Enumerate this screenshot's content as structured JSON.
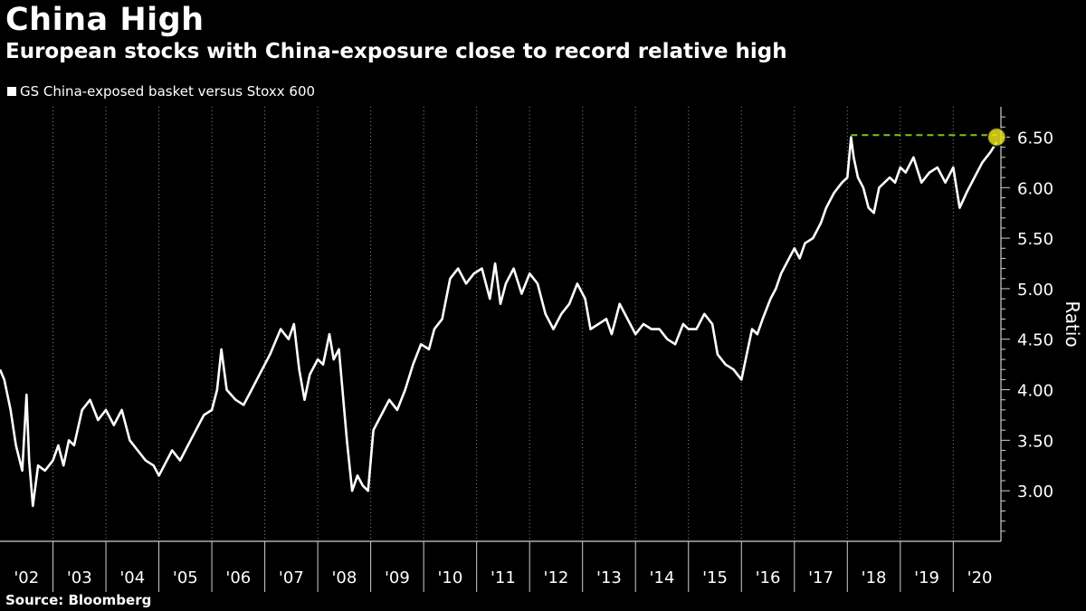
{
  "chart_data": {
    "type": "line",
    "title": "China High",
    "subtitle": "European stocks with China-exposure close to record relative high",
    "ylabel": "Ratio",
    "xlabel": "",
    "ylim": [
      2.5,
      6.8
    ],
    "xlim": [
      2002.0,
      2020.9
    ],
    "yticks": [
      3.0,
      3.5,
      4.0,
      4.5,
      5.0,
      5.5,
      6.0,
      6.5
    ],
    "ytick_labels": [
      "3.00",
      "3.50",
      "4.00",
      "4.50",
      "5.00",
      "5.50",
      "6.00",
      "6.50"
    ],
    "xtick_labels": [
      "'02",
      "'03",
      "'04",
      "'05",
      "'06",
      "'07",
      "'08",
      "'09",
      "'10",
      "'11",
      "'12",
      "'13",
      "'14",
      "'15",
      "'16",
      "'17",
      "'18",
      "'19",
      "'20"
    ],
    "grid": "vertical dotted",
    "legend_position": "top-left",
    "series": [
      {
        "name": "GS China-exposed basket versus Stoxx 600",
        "color": "#ffffff",
        "points": [
          [
            2002.0,
            4.2
          ],
          [
            2002.08,
            4.1
          ],
          [
            2002.2,
            3.8
          ],
          [
            2002.3,
            3.45
          ],
          [
            2002.42,
            3.2
          ],
          [
            2002.5,
            3.95
          ],
          [
            2002.55,
            3.3
          ],
          [
            2002.62,
            2.85
          ],
          [
            2002.72,
            3.25
          ],
          [
            2002.85,
            3.2
          ],
          [
            2003.0,
            3.3
          ],
          [
            2003.1,
            3.45
          ],
          [
            2003.2,
            3.25
          ],
          [
            2003.3,
            3.5
          ],
          [
            2003.4,
            3.45
          ],
          [
            2003.55,
            3.8
          ],
          [
            2003.7,
            3.9
          ],
          [
            2003.85,
            3.7
          ],
          [
            2004.0,
            3.8
          ],
          [
            2004.15,
            3.65
          ],
          [
            2004.3,
            3.8
          ],
          [
            2004.45,
            3.5
          ],
          [
            2004.6,
            3.4
          ],
          [
            2004.75,
            3.3
          ],
          [
            2004.9,
            3.25
          ],
          [
            2005.0,
            3.15
          ],
          [
            2005.1,
            3.25
          ],
          [
            2005.25,
            3.4
          ],
          [
            2005.4,
            3.3
          ],
          [
            2005.55,
            3.45
          ],
          [
            2005.7,
            3.6
          ],
          [
            2005.85,
            3.75
          ],
          [
            2006.0,
            3.8
          ],
          [
            2006.1,
            4.0
          ],
          [
            2006.18,
            4.4
          ],
          [
            2006.28,
            4.0
          ],
          [
            2006.45,
            3.9
          ],
          [
            2006.6,
            3.85
          ],
          [
            2006.75,
            4.0
          ],
          [
            2006.9,
            4.15
          ],
          [
            2007.1,
            4.35
          ],
          [
            2007.3,
            4.6
          ],
          [
            2007.45,
            4.5
          ],
          [
            2007.55,
            4.65
          ],
          [
            2007.65,
            4.2
          ],
          [
            2007.75,
            3.9
          ],
          [
            2007.85,
            4.15
          ],
          [
            2008.0,
            4.3
          ],
          [
            2008.1,
            4.25
          ],
          [
            2008.22,
            4.55
          ],
          [
            2008.3,
            4.3
          ],
          [
            2008.4,
            4.4
          ],
          [
            2008.55,
            3.5
          ],
          [
            2008.65,
            3.0
          ],
          [
            2008.75,
            3.15
          ],
          [
            2008.85,
            3.05
          ],
          [
            2008.95,
            3.0
          ],
          [
            2009.05,
            3.6
          ],
          [
            2009.2,
            3.75
          ],
          [
            2009.35,
            3.9
          ],
          [
            2009.5,
            3.8
          ],
          [
            2009.65,
            4.0
          ],
          [
            2009.8,
            4.25
          ],
          [
            2009.95,
            4.45
          ],
          [
            2010.1,
            4.4
          ],
          [
            2010.2,
            4.6
          ],
          [
            2010.35,
            4.7
          ],
          [
            2010.5,
            5.1
          ],
          [
            2010.65,
            5.2
          ],
          [
            2010.8,
            5.05
          ],
          [
            2010.95,
            5.15
          ],
          [
            2011.1,
            5.2
          ],
          [
            2011.25,
            4.9
          ],
          [
            2011.35,
            5.25
          ],
          [
            2011.45,
            4.85
          ],
          [
            2011.55,
            5.05
          ],
          [
            2011.7,
            5.2
          ],
          [
            2011.85,
            4.95
          ],
          [
            2012.0,
            5.15
          ],
          [
            2012.15,
            5.05
          ],
          [
            2012.3,
            4.75
          ],
          [
            2012.45,
            4.6
          ],
          [
            2012.6,
            4.75
          ],
          [
            2012.75,
            4.85
          ],
          [
            2012.9,
            5.05
          ],
          [
            2013.05,
            4.9
          ],
          [
            2013.15,
            4.6
          ],
          [
            2013.3,
            4.65
          ],
          [
            2013.45,
            4.7
          ],
          [
            2013.55,
            4.55
          ],
          [
            2013.7,
            4.85
          ],
          [
            2013.85,
            4.7
          ],
          [
            2014.0,
            4.55
          ],
          [
            2014.15,
            4.65
          ],
          [
            2014.3,
            4.6
          ],
          [
            2014.45,
            4.6
          ],
          [
            2014.6,
            4.5
          ],
          [
            2014.75,
            4.45
          ],
          [
            2014.9,
            4.65
          ],
          [
            2015.0,
            4.6
          ],
          [
            2015.15,
            4.6
          ],
          [
            2015.3,
            4.75
          ],
          [
            2015.45,
            4.65
          ],
          [
            2015.55,
            4.35
          ],
          [
            2015.7,
            4.25
          ],
          [
            2015.85,
            4.2
          ],
          [
            2016.0,
            4.1
          ],
          [
            2016.1,
            4.35
          ],
          [
            2016.2,
            4.6
          ],
          [
            2016.3,
            4.55
          ],
          [
            2016.4,
            4.7
          ],
          [
            2016.55,
            4.9
          ],
          [
            2016.65,
            5.0
          ],
          [
            2016.75,
            5.15
          ],
          [
            2016.85,
            5.25
          ],
          [
            2017.0,
            5.4
          ],
          [
            2017.1,
            5.3
          ],
          [
            2017.2,
            5.45
          ],
          [
            2017.35,
            5.5
          ],
          [
            2017.5,
            5.65
          ],
          [
            2017.6,
            5.8
          ],
          [
            2017.75,
            5.95
          ],
          [
            2017.9,
            6.05
          ],
          [
            2018.0,
            6.1
          ],
          [
            2018.07,
            6.5
          ],
          [
            2018.12,
            6.3
          ],
          [
            2018.2,
            6.1
          ],
          [
            2018.3,
            6.0
          ],
          [
            2018.4,
            5.8
          ],
          [
            2018.5,
            5.75
          ],
          [
            2018.6,
            6.0
          ],
          [
            2018.7,
            6.05
          ],
          [
            2018.8,
            6.1
          ],
          [
            2018.9,
            6.05
          ],
          [
            2019.0,
            6.2
          ],
          [
            2019.1,
            6.15
          ],
          [
            2019.25,
            6.3
          ],
          [
            2019.4,
            6.05
          ],
          [
            2019.55,
            6.15
          ],
          [
            2019.7,
            6.2
          ],
          [
            2019.85,
            6.05
          ],
          [
            2020.0,
            6.2
          ],
          [
            2020.12,
            5.8
          ],
          [
            2020.25,
            5.95
          ],
          [
            2020.4,
            6.1
          ],
          [
            2020.55,
            6.25
          ],
          [
            2020.7,
            6.35
          ],
          [
            2020.82,
            6.45
          ]
        ]
      }
    ],
    "annotations": [
      {
        "type": "reference-line",
        "style": "dashed",
        "color": "#7fc41e",
        "y": 6.52,
        "x_start": 2018.07,
        "x_end": 2020.82
      },
      {
        "type": "marker",
        "shape": "circle",
        "color": "#e6e01a",
        "x": 2020.82,
        "y": 6.5
      }
    ]
  },
  "source": "Source: Bloomberg"
}
